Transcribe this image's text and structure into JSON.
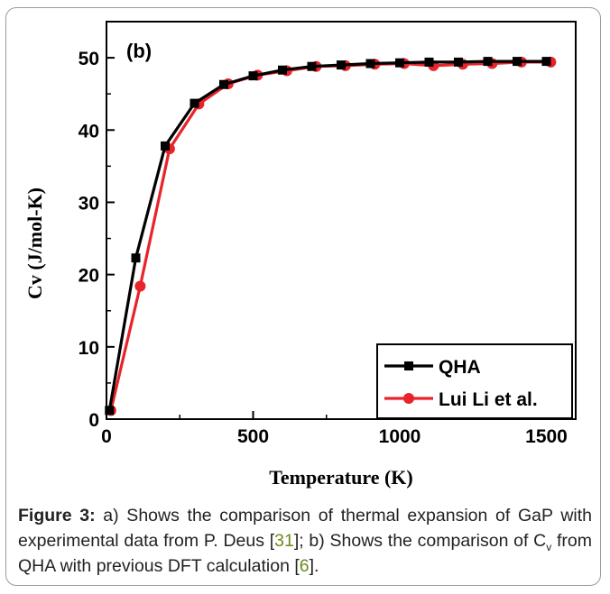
{
  "chart_data": {
    "type": "line",
    "panel_label": "(b)",
    "xlabel": "Temperature (K)",
    "ylabel": "Cv (J/mol-K)",
    "xlim": [
      0,
      1600
    ],
    "ylim": [
      0,
      55
    ],
    "xticks": [
      0,
      500,
      1000,
      1500
    ],
    "yticks": [
      0,
      10,
      20,
      30,
      40,
      50
    ],
    "legend_position": "bottom-right",
    "series": [
      {
        "name": "QHA",
        "color": "#000000",
        "marker": "square",
        "x": [
          10,
          100,
          200,
          300,
          400,
          500,
          600,
          700,
          800,
          900,
          1000,
          1100,
          1200,
          1300,
          1400,
          1500
        ],
        "y": [
          1.2,
          22.3,
          37.8,
          43.7,
          46.3,
          47.5,
          48.3,
          48.8,
          49.0,
          49.2,
          49.3,
          49.4,
          49.4,
          49.5,
          49.5,
          49.5
        ]
      },
      {
        "name": "Lui Li et al.",
        "color": "#e8232a",
        "marker": "circle",
        "x": [
          15,
          115,
          215,
          315,
          415,
          515,
          615,
          715,
          815,
          915,
          1015,
          1115,
          1215,
          1315,
          1415,
          1515
        ],
        "y": [
          1.2,
          18.4,
          37.4,
          43.6,
          46.4,
          47.6,
          48.2,
          48.8,
          48.9,
          49.1,
          49.2,
          48.9,
          49.1,
          49.2,
          49.4,
          49.4
        ]
      }
    ]
  },
  "caption": {
    "lead": "Figure 3:",
    "part1": " a) Shows the comparison of thermal expansion of GaP with experimental data from P. Deus [",
    "ref1": "31",
    "part2": "]; b) Shows the comparison of C",
    "sub": "v",
    "part3": " from QHA with previous DFT calculation [",
    "ref2": "6",
    "part4": "]."
  }
}
